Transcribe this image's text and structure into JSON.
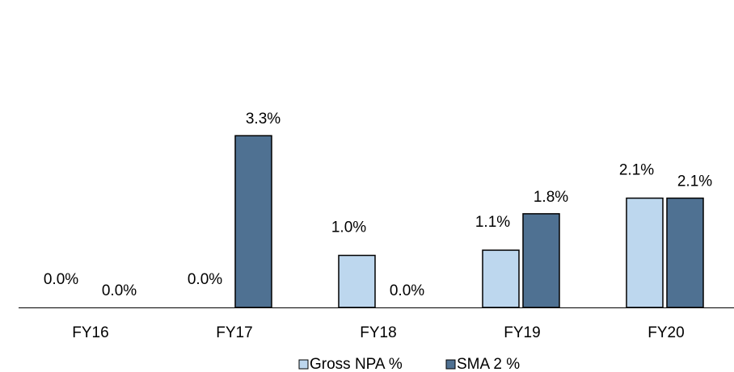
{
  "chart_data": {
    "type": "bar",
    "categories": [
      "FY16",
      "FY17",
      "FY18",
      "FY19",
      "FY20"
    ],
    "series": [
      {
        "name": "Gross NPA %",
        "color": "#bdd7ee",
        "values": [
          0.0,
          0.0,
          1.0,
          1.1,
          2.1
        ],
        "value_labels": [
          "0.0%",
          "0.0%",
          "1.0%",
          "1.1%",
          "2.1%"
        ]
      },
      {
        "name": "SMA 2 %",
        "color": "#4f7192",
        "values": [
          0.0,
          3.3,
          0.0,
          1.8,
          2.1
        ],
        "value_labels": [
          "0.0%",
          "3.3%",
          "0.0%",
          "1.8%",
          "2.1%"
        ]
      }
    ],
    "legend": "bottom"
  }
}
